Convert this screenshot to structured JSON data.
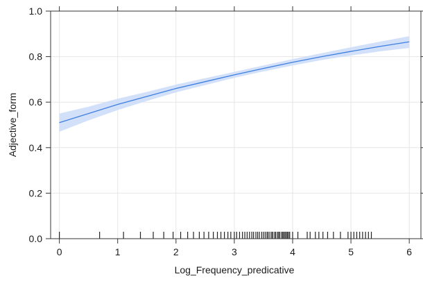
{
  "chart_data": {
    "type": "line",
    "title": "",
    "xlabel": "Log_Frequency_predicative",
    "ylabel": "Adjective_form",
    "xlim": [
      -0.15,
      6.2
    ],
    "ylim": [
      0.0,
      1.0
    ],
    "x_ticks": [
      0,
      1,
      2,
      3,
      4,
      5,
      6
    ],
    "y_ticks": [
      0.0,
      0.2,
      0.4,
      0.6,
      0.8,
      1.0
    ],
    "x_tick_labels": [
      "0",
      "1",
      "2",
      "3",
      "4",
      "5",
      "6"
    ],
    "y_tick_labels": [
      "0.0",
      "0.2",
      "0.4",
      "0.6",
      "0.8",
      "1.0"
    ],
    "grid": true,
    "series": [
      {
        "x": [
          0,
          0.5,
          1,
          1.5,
          2,
          2.5,
          3,
          3.5,
          4,
          4.5,
          5,
          5.5,
          6
        ],
        "y": [
          0.51,
          0.55,
          0.59,
          0.625,
          0.66,
          0.69,
          0.72,
          0.748,
          0.775,
          0.8,
          0.823,
          0.845,
          0.865
        ],
        "lower": [
          0.47,
          0.52,
          0.565,
          0.605,
          0.643,
          0.675,
          0.707,
          0.735,
          0.761,
          0.785,
          0.805,
          0.823,
          0.838
        ],
        "upper": [
          0.55,
          0.58,
          0.615,
          0.645,
          0.677,
          0.705,
          0.733,
          0.761,
          0.789,
          0.815,
          0.841,
          0.866,
          0.89
        ],
        "color": "#3d7fe0",
        "band_color": "#cdddfa"
      }
    ],
    "rug": [
      0.0,
      0.69,
      1.1,
      1.39,
      1.61,
      1.79,
      1.95,
      2.08,
      2.2,
      2.3,
      2.4,
      2.48,
      2.56,
      2.64,
      2.71,
      2.77,
      2.83,
      2.89,
      2.94,
      3.0,
      3.04,
      3.09,
      3.14,
      3.18,
      3.22,
      3.26,
      3.3,
      3.33,
      3.37,
      3.4,
      3.43,
      3.47,
      3.5,
      3.53,
      3.56,
      3.58,
      3.61,
      3.64,
      3.66,
      3.69,
      3.71,
      3.74,
      3.76,
      3.78,
      3.81,
      3.83,
      3.85,
      3.87,
      3.89,
      3.91,
      3.93,
      3.95,
      4.0,
      4.09,
      4.25,
      4.3,
      4.39,
      4.45,
      4.52,
      4.6,
      4.7,
      4.82,
      4.95,
      5.0,
      5.05,
      5.1,
      5.15,
      5.2,
      5.25,
      5.3,
      5.35
    ]
  }
}
